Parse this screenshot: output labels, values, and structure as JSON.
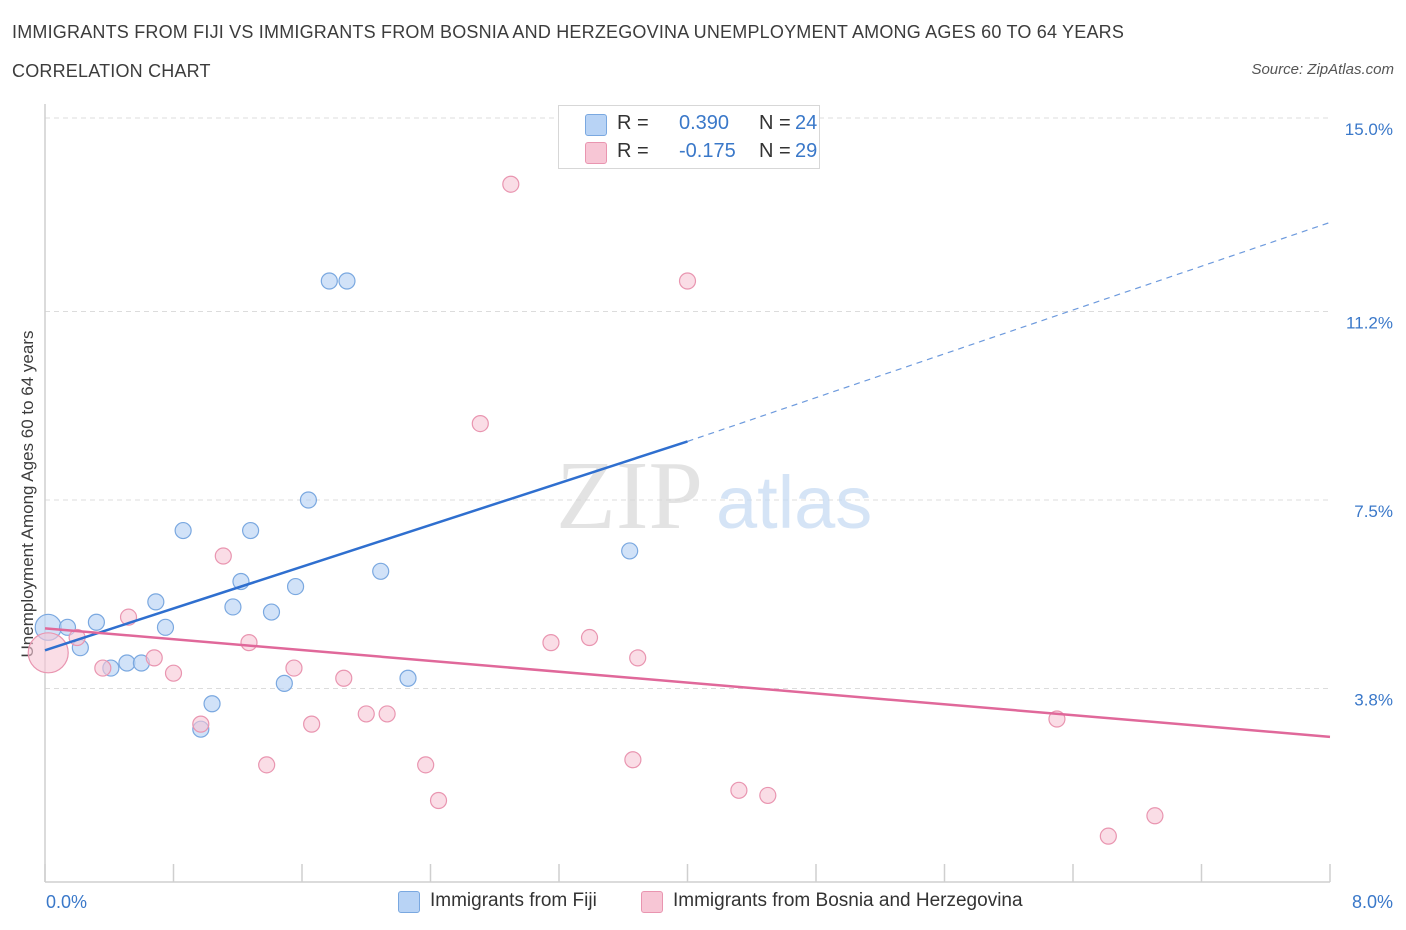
{
  "header": {
    "title": "IMMIGRANTS FROM FIJI VS IMMIGRANTS FROM BOSNIA AND HERZEGOVINA UNEMPLOYMENT AMONG AGES 60 TO 64 YEARS",
    "subtitle": "CORRELATION CHART",
    "source": "Source: ZipAtlas.com"
  },
  "legend": {
    "rows": [
      {
        "r_label": "R =",
        "r_value": "0.390",
        "n_label": "N =",
        "n_value": "24"
      },
      {
        "r_label": "R =",
        "r_value": "-0.175",
        "n_label": "N =",
        "n_value": "29"
      }
    ]
  },
  "watermark": {
    "zip": "ZIP",
    "atlas": "atlas"
  },
  "colors": {
    "fiji_fill": "#b8d3f5",
    "fiji_stroke": "#7aa8e0",
    "fiji_line": "#2f6fcf",
    "bosnia_fill": "#f7c6d5",
    "bosnia_stroke": "#e995b0",
    "bosnia_line": "#e0689a",
    "grid": "#dcdcdc",
    "tick_label": "#3a78c9"
  },
  "chart_data": {
    "type": "scatter",
    "title": "IMMIGRANTS FROM FIJI VS IMMIGRANTS FROM BOSNIA AND HERZEGOVINA UNEMPLOYMENT AMONG AGES 60 TO 64 YEARS",
    "xlabel": "",
    "ylabel": "Unemployment Among Ages 60 to 64 years",
    "xlim": [
      0,
      8.0
    ],
    "ylim": [
      0,
      15.0
    ],
    "x_tick_labels": [
      "0.0%",
      "8.0%"
    ],
    "y_ticks": [
      3.8,
      7.5,
      11.2,
      15.0
    ],
    "y_tick_labels": [
      "3.8%",
      "7.5%",
      "11.2%",
      "15.0%"
    ],
    "series": [
      {
        "name": "Immigrants from Fiji",
        "R": 0.39,
        "N": 24,
        "points": [
          [
            0.02,
            5.0
          ],
          [
            0.14,
            5.0
          ],
          [
            0.22,
            4.6
          ],
          [
            0.32,
            5.1
          ],
          [
            0.41,
            4.2
          ],
          [
            0.51,
            4.3
          ],
          [
            0.6,
            4.3
          ],
          [
            0.69,
            5.5
          ],
          [
            0.75,
            5.0
          ],
          [
            0.86,
            6.9
          ],
          [
            0.97,
            3.0
          ],
          [
            1.04,
            3.5
          ],
          [
            1.17,
            5.4
          ],
          [
            1.22,
            5.9
          ],
          [
            1.28,
            6.9
          ],
          [
            1.41,
            5.3
          ],
          [
            1.49,
            3.9
          ],
          [
            1.56,
            5.8
          ],
          [
            1.64,
            7.5
          ],
          [
            1.77,
            11.8
          ],
          [
            1.88,
            11.8
          ],
          [
            2.09,
            6.1
          ],
          [
            2.26,
            4.0
          ],
          [
            3.64,
            6.5
          ]
        ],
        "trend": {
          "x_start": 0.0,
          "y_start": 4.55,
          "x_solid_end": 4.0,
          "y_solid_end": 8.65,
          "x_dashed_end": 8.0,
          "y_dashed_end": 12.95
        }
      },
      {
        "name": "Immigrants from Bosnia and Herzegovina",
        "R": -0.175,
        "N": 29,
        "points": [
          [
            0.02,
            4.5
          ],
          [
            0.2,
            4.8
          ],
          [
            0.36,
            4.2
          ],
          [
            0.52,
            5.2
          ],
          [
            0.68,
            4.4
          ],
          [
            0.8,
            4.1
          ],
          [
            0.97,
            3.1
          ],
          [
            1.11,
            6.4
          ],
          [
            1.27,
            4.7
          ],
          [
            1.38,
            2.3
          ],
          [
            1.55,
            4.2
          ],
          [
            1.66,
            3.1
          ],
          [
            1.86,
            4.0
          ],
          [
            2.0,
            3.3
          ],
          [
            2.13,
            3.3
          ],
          [
            2.37,
            2.3
          ],
          [
            2.45,
            1.6
          ],
          [
            2.71,
            9.0
          ],
          [
            2.9,
            13.7
          ],
          [
            3.15,
            4.7
          ],
          [
            3.39,
            4.8
          ],
          [
            3.66,
            2.4
          ],
          [
            3.69,
            4.4
          ],
          [
            4.0,
            11.8
          ],
          [
            4.32,
            1.8
          ],
          [
            4.5,
            1.7
          ],
          [
            6.3,
            3.2
          ],
          [
            6.62,
            0.9
          ],
          [
            6.91,
            1.3
          ]
        ],
        "trend": {
          "x_start": 0.0,
          "y_start": 4.98,
          "x_solid_end": 8.0,
          "y_solid_end": 2.85
        }
      }
    ]
  }
}
